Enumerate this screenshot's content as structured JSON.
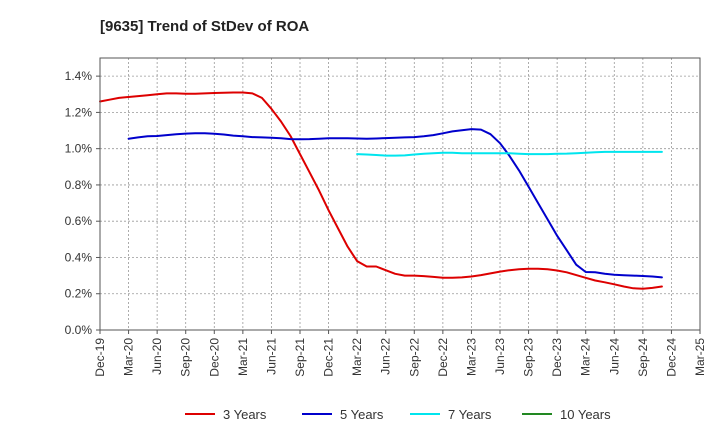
{
  "chart_data": {
    "type": "line",
    "title": "[9635]  Trend of StDev of ROA",
    "xlabel": "",
    "ylabel": "",
    "ylim": [
      0,
      1.5
    ],
    "y_ticks": [
      0,
      0.2,
      0.4,
      0.6,
      0.8,
      1.0,
      1.2,
      1.4
    ],
    "y_tick_labels": [
      "0.0%",
      "0.2%",
      "0.4%",
      "0.6%",
      "0.8%",
      "1.0%",
      "1.2%",
      "1.4%"
    ],
    "x_tick_labels": [
      "Dec-19",
      "Mar-20",
      "Jun-20",
      "Sep-20",
      "Dec-20",
      "Mar-21",
      "Jun-21",
      "Sep-21",
      "Dec-21",
      "Mar-22",
      "Jun-22",
      "Sep-22",
      "Dec-22",
      "Mar-23",
      "Jun-23",
      "Sep-23",
      "Dec-23",
      "Mar-24",
      "Jun-24",
      "Sep-24",
      "Dec-24",
      "Mar-25"
    ],
    "grid": true,
    "legend_position": "bottom",
    "series": [
      {
        "name": "3 Years",
        "color": "#dd0000",
        "values": [
          1.26,
          1.27,
          1.28,
          1.285,
          1.29,
          1.295,
          1.3,
          1.305,
          1.305,
          1.303,
          1.303,
          1.305,
          1.307,
          1.308,
          1.31,
          1.31,
          1.305,
          1.28,
          1.22,
          1.15,
          1.07,
          0.97,
          0.87,
          0.77,
          0.66,
          0.56,
          0.46,
          0.38,
          0.35,
          0.35,
          0.33,
          0.31,
          0.3,
          0.3,
          0.297,
          0.293,
          0.288,
          0.288,
          0.29,
          0.295,
          0.303,
          0.312,
          0.322,
          0.33,
          0.335,
          0.338,
          0.338,
          0.335,
          0.328,
          0.318,
          0.303,
          0.288,
          0.273,
          0.263,
          0.252,
          0.24,
          0.23,
          0.228,
          0.232,
          0.24
        ]
      },
      {
        "name": "5 Years",
        "color": "#0000cc",
        "values": [
          null,
          null,
          null,
          1.055,
          1.062,
          1.068,
          1.07,
          1.075,
          1.08,
          1.083,
          1.085,
          1.085,
          1.082,
          1.078,
          1.072,
          1.068,
          1.064,
          1.062,
          1.06,
          1.057,
          1.053,
          1.052,
          1.053,
          1.055,
          1.057,
          1.057,
          1.057,
          1.056,
          1.055,
          1.056,
          1.058,
          1.06,
          1.062,
          1.064,
          1.068,
          1.075,
          1.085,
          1.095,
          1.102,
          1.108,
          1.105,
          1.08,
          1.03,
          0.96,
          0.88,
          0.79,
          0.7,
          0.61,
          0.52,
          0.44,
          0.36,
          0.32,
          0.318,
          0.31,
          0.305,
          0.302,
          0.3,
          0.298,
          0.295,
          0.29
        ]
      },
      {
        "name": "7 Years",
        "color": "#00e5ee",
        "values": [
          null,
          null,
          null,
          null,
          null,
          null,
          null,
          null,
          null,
          null,
          null,
          null,
          null,
          null,
          null,
          null,
          null,
          null,
          null,
          null,
          null,
          null,
          null,
          null,
          null,
          null,
          null,
          0.97,
          0.968,
          0.965,
          0.962,
          0.962,
          0.963,
          0.968,
          0.972,
          0.975,
          0.978,
          0.978,
          0.975,
          0.975,
          0.975,
          0.975,
          0.975,
          0.975,
          0.972,
          0.97,
          0.97,
          0.97,
          0.972,
          0.973,
          0.975,
          0.978,
          0.98,
          0.982,
          0.982,
          0.982,
          0.982,
          0.982,
          0.982,
          0.982
        ]
      },
      {
        "name": "10 Years",
        "color": "#228822",
        "values": []
      }
    ]
  }
}
